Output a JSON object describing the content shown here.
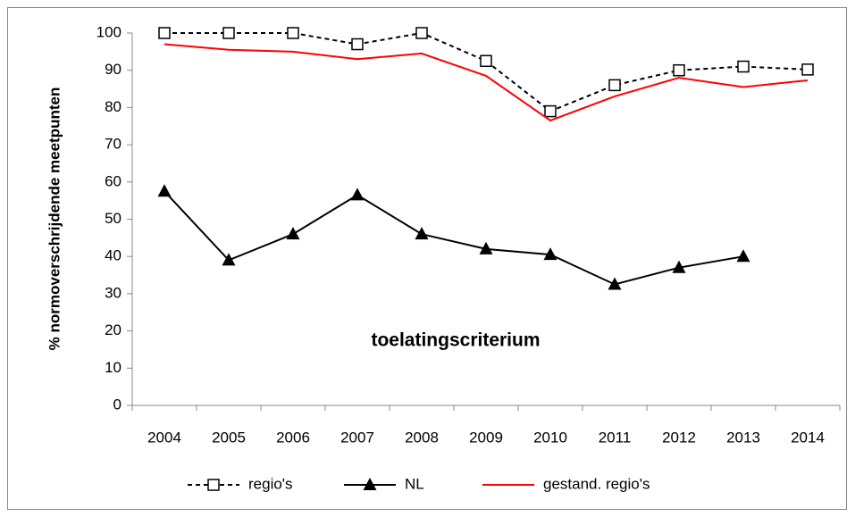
{
  "chart_data": {
    "type": "line",
    "y_label": "% normoverschrijdende meetpunten",
    "annotation": "toelatingscriterium",
    "categories": [
      "2004",
      "2005",
      "2006",
      "2007",
      "2008",
      "2009",
      "2010",
      "2011",
      "2012",
      "2013",
      "2014"
    ],
    "series": [
      {
        "name": "regio's",
        "color": "#000000",
        "dash": true,
        "marker": "square",
        "values": [
          100,
          100,
          100,
          97,
          100,
          92.5,
          79,
          86,
          90,
          91,
          90.2
        ]
      },
      {
        "name": "NL",
        "color": "#000000",
        "dash": false,
        "marker": "triangle",
        "values": [
          57.5,
          39,
          46,
          56.5,
          46,
          42,
          40.5,
          32.5,
          37,
          40,
          null
        ]
      },
      {
        "name": "gestand. regio's",
        "color": "#ff0000",
        "dash": false,
        "marker": "none",
        "values": [
          97,
          95.5,
          95,
          93,
          94.5,
          88.5,
          76.5,
          83,
          88,
          85.5,
          87.3
        ]
      }
    ],
    "ylim": [
      0,
      100
    ],
    "yticks": [
      0,
      10,
      20,
      30,
      40,
      50,
      60,
      70,
      80,
      90,
      100
    ],
    "grid": false,
    "legend": "bottom"
  }
}
